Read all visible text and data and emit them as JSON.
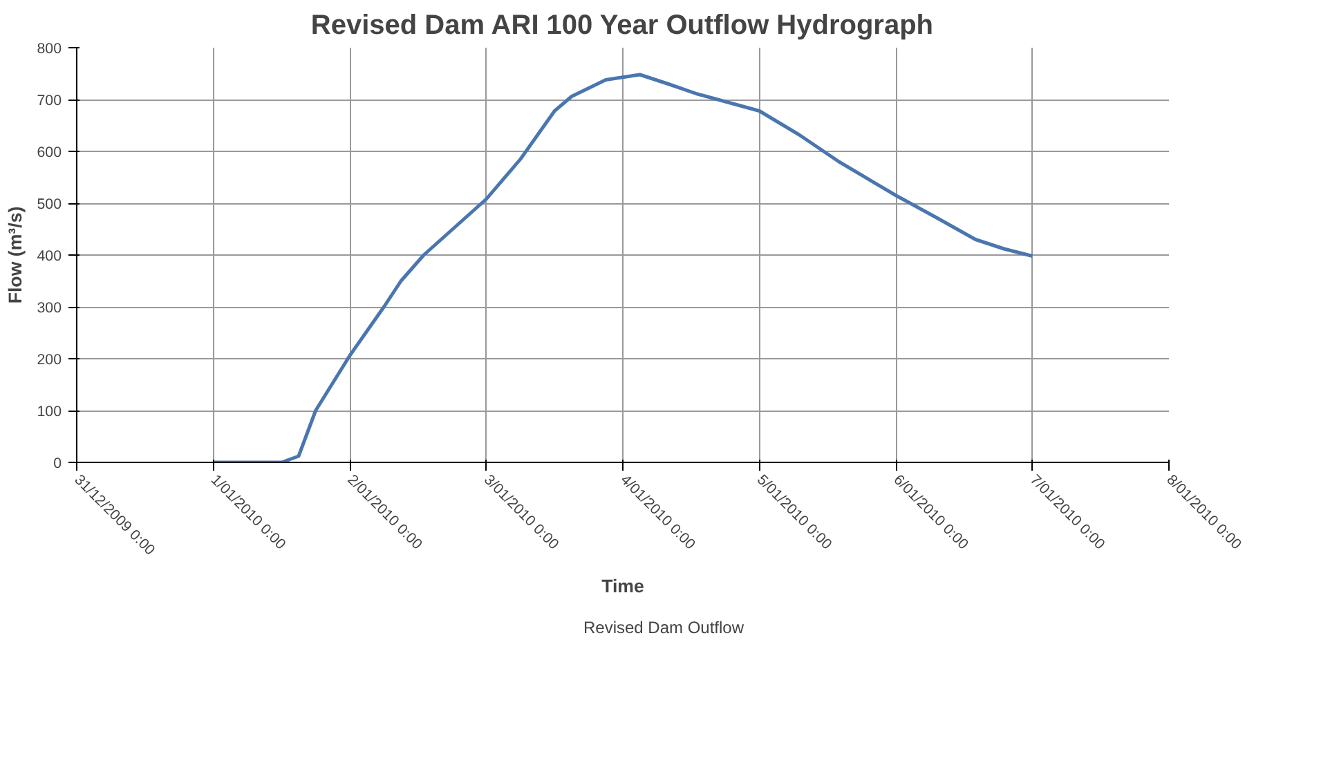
{
  "chart_data": {
    "type": "line",
    "title": "Revised Dam ARI 100 Year Outflow Hydrograph",
    "xlabel": "Time",
    "ylabel": "Flow (m³/s)",
    "x": [
      "2010-01-01T00:00",
      "2010-01-01T12:00",
      "2010-01-01T15:00",
      "2010-01-01T18:00",
      "2010-01-02T00:00",
      "2010-01-02T06:00",
      "2010-01-02T09:00",
      "2010-01-02T13:00",
      "2010-01-03T00:00",
      "2010-01-03T06:00",
      "2010-01-03T12:00",
      "2010-01-03T15:00",
      "2010-01-03T21:00",
      "2010-01-04T03:00",
      "2010-01-04T08:00",
      "2010-01-04T13:00",
      "2010-01-05T00:00",
      "2010-01-05T07:00",
      "2010-01-05T14:00",
      "2010-01-06T00:00",
      "2010-01-06T07:00",
      "2010-01-06T14:00",
      "2010-01-06T19:00",
      "2010-01-07T00:00"
    ],
    "series": [
      {
        "name": "Revised Dam Outflow",
        "color": "#4a76b0",
        "values": [
          0,
          0,
          12,
          100,
          206,
          300,
          350,
          400,
          508,
          585,
          678,
          706,
          738,
          748,
          730,
          711,
          678,
          632,
          580,
          515,
          473,
          430,
          412,
          398
        ]
      }
    ],
    "xlim": [
      "2009-12-31T00:00",
      "2010-01-08T00:00"
    ],
    "xticks": [
      {
        "value": "2009-12-31T00:00",
        "label": "31/12/2009 0:00"
      },
      {
        "value": "2010-01-01T00:00",
        "label": "1/01/2010 0:00"
      },
      {
        "value": "2010-01-02T00:00",
        "label": "2/01/2010 0:00"
      },
      {
        "value": "2010-01-03T00:00",
        "label": "3/01/2010 0:00"
      },
      {
        "value": "2010-01-04T00:00",
        "label": "4/01/2010 0:00"
      },
      {
        "value": "2010-01-05T00:00",
        "label": "5/01/2010 0:00"
      },
      {
        "value": "2010-01-06T00:00",
        "label": "6/01/2010 0:00"
      },
      {
        "value": "2010-01-07T00:00",
        "label": "7/01/2010 0:00"
      },
      {
        "value": "2010-01-08T00:00",
        "label": "8/01/2010 0:00"
      }
    ],
    "ylim": [
      0,
      800
    ],
    "yticks": [
      0,
      100,
      200,
      300,
      400,
      500,
      600,
      700,
      800
    ],
    "grid": true,
    "legend": "bottom",
    "marker": "none",
    "line_style": "solid"
  }
}
